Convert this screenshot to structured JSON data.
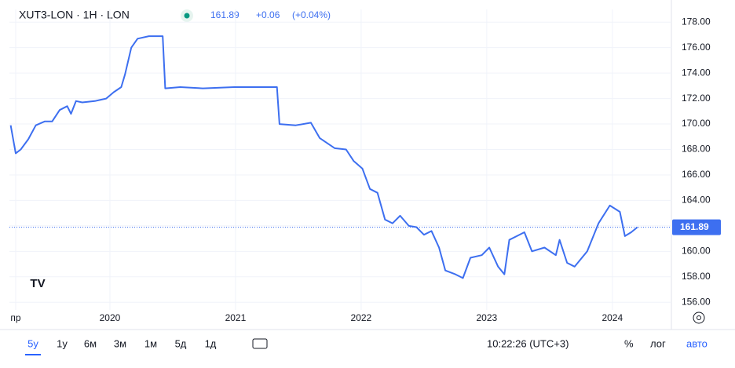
{
  "header": {
    "symbol": "XUT3-LON · 1H · LON",
    "change": "+0.06",
    "change_pct": "(+0.04%)"
  },
  "chart_data": {
    "type": "line",
    "x": [
      2019.21,
      2019.25,
      2019.29,
      2019.35,
      2019.41,
      2019.48,
      2019.54,
      2019.6,
      2019.66,
      2019.69,
      2019.73,
      2019.78,
      2019.88,
      2019.97,
      2020.03,
      2020.09,
      2020.12,
      2020.17,
      2020.22,
      2020.31,
      2020.42,
      2020.44,
      2020.56,
      2020.74,
      2020.99,
      2021.17,
      2021.33,
      2021.35,
      2021.48,
      2021.6,
      2021.67,
      2021.79,
      2021.88,
      2021.94,
      2022.01,
      2022.07,
      2022.13,
      2022.19,
      2022.25,
      2022.31,
      2022.38,
      2022.44,
      2022.5,
      2022.56,
      2022.62,
      2022.67,
      2022.75,
      2022.81,
      2022.87,
      2022.96,
      2023.02,
      2023.09,
      2023.14,
      2023.18,
      2023.24,
      2023.3,
      2023.36,
      2023.46,
      2023.55,
      2023.58,
      2023.64,
      2023.7,
      2023.8,
      2023.89,
      2023.98,
      2024.06,
      2024.1,
      2024.15,
      2024.2
    ],
    "series": [
      {
        "name": "XUT3-LON",
        "color": "#3d6ff0",
        "values": [
          169.9,
          167.7,
          168.0,
          168.8,
          169.9,
          170.2,
          170.2,
          171.1,
          171.4,
          170.8,
          171.8,
          171.7,
          171.8,
          172.0,
          172.5,
          172.9,
          173.9,
          176.0,
          176.7,
          176.9,
          176.9,
          172.8,
          172.9,
          172.8,
          172.9,
          172.9,
          172.9,
          170.0,
          169.9,
          170.1,
          168.9,
          168.1,
          168.0,
          167.1,
          166.5,
          164.9,
          164.6,
          162.5,
          162.2,
          162.8,
          162.0,
          161.9,
          161.3,
          161.6,
          160.3,
          158.5,
          158.2,
          157.9,
          159.5,
          159.7,
          160.3,
          158.8,
          158.2,
          160.9,
          161.2,
          161.5,
          160.0,
          160.3,
          159.7,
          160.9,
          159.1,
          158.8,
          160.0,
          162.2,
          163.6,
          163.1,
          161.2,
          161.5,
          161.9
        ]
      }
    ],
    "current_price": 161.89,
    "xlim": [
      2019.2,
      2024.47
    ],
    "xticks": [
      {
        "value": 2019.25,
        "label": "пр"
      },
      2020,
      2021,
      2022,
      2023,
      2024
    ],
    "ylim": [
      155.4,
      179
    ],
    "yticks": [
      {
        "value": 156,
        "label": "156.00"
      },
      {
        "value": 158,
        "label": "158.00"
      },
      {
        "value": 160,
        "label": "160.00"
      },
      {
        "value": 162,
        "label": "162.00"
      },
      {
        "value": 164,
        "label": "164.00"
      },
      {
        "value": 166,
        "label": "166.00"
      },
      {
        "value": 168,
        "label": "168.00"
      },
      {
        "value": 170,
        "label": "170.00"
      },
      {
        "value": 172,
        "label": "172.00"
      },
      {
        "value": 174,
        "label": "174.00"
      },
      {
        "value": 176,
        "label": "176.00"
      },
      {
        "value": 178,
        "label": "178.00"
      }
    ],
    "grid": true
  },
  "toolbar": {
    "ranges": [
      "5y",
      "1y",
      "6м",
      "3м",
      "1м",
      "5д",
      "1д"
    ],
    "time": "10:22:26 (UTC+3)",
    "percent": "%",
    "log": "лог",
    "auto": "авто"
  }
}
